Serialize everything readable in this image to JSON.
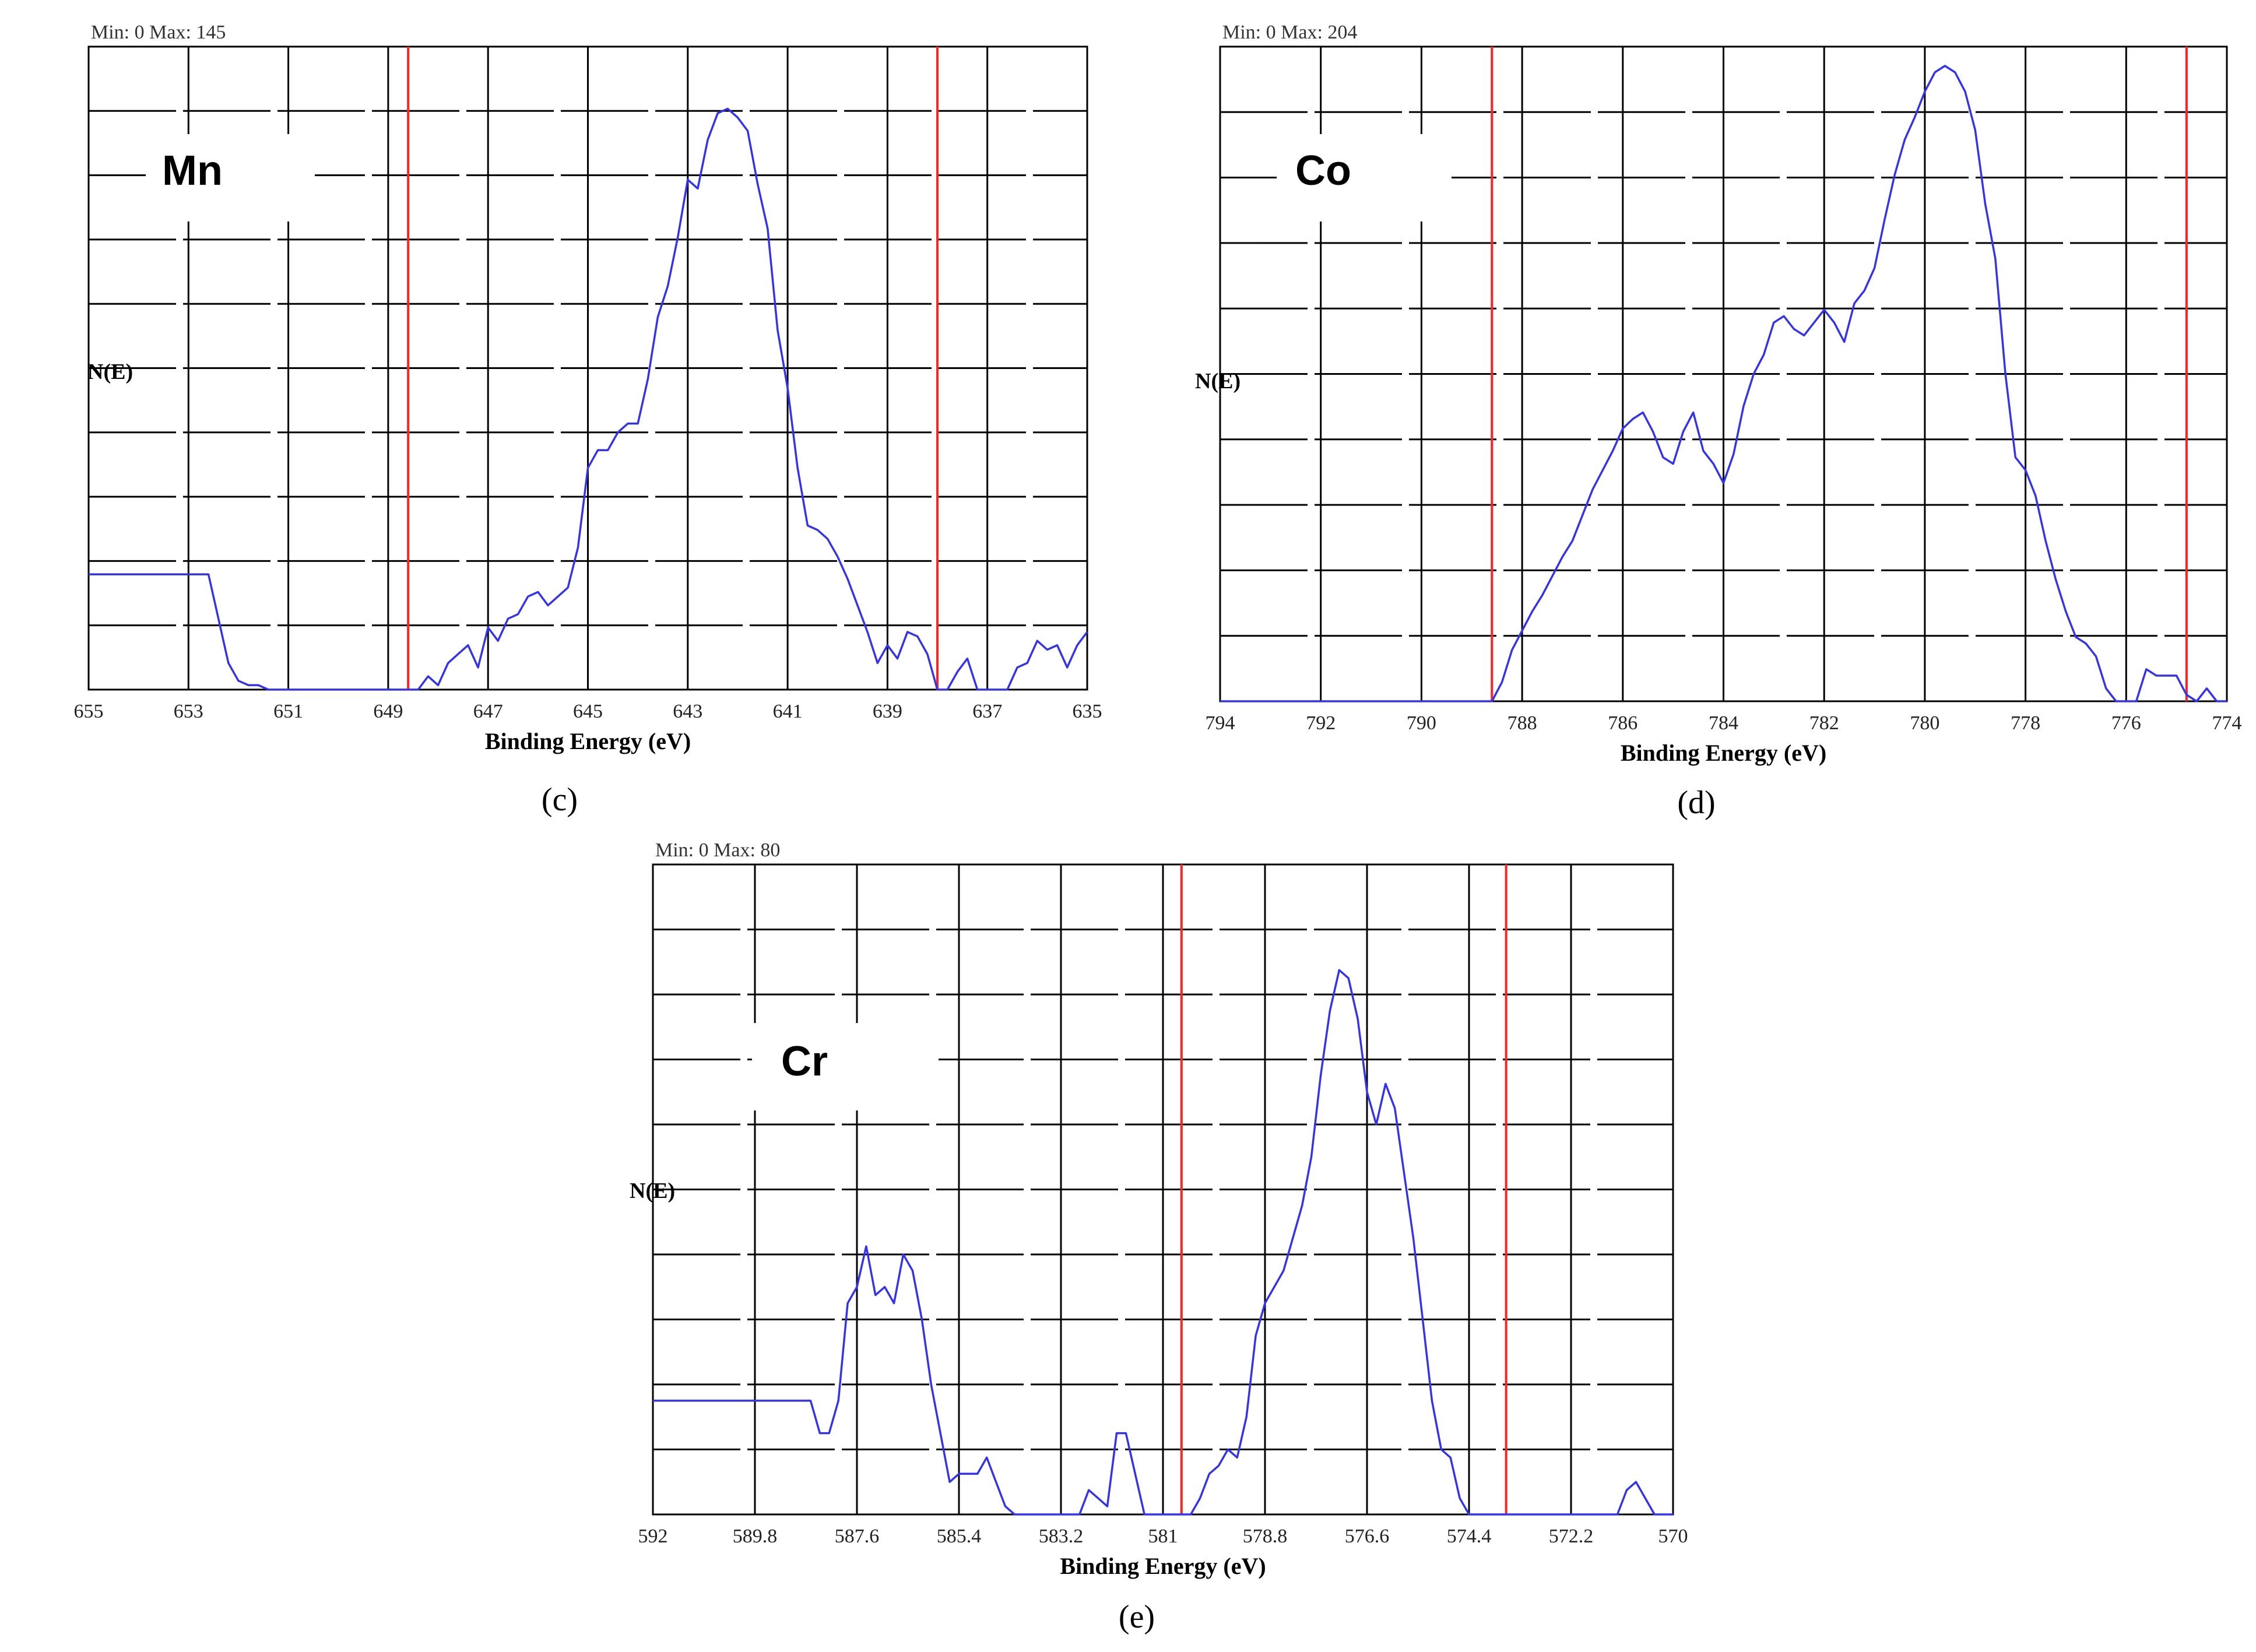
{
  "chart_data": [
    {
      "type": "line",
      "panel_label": "(c)",
      "element_label": "Mn",
      "range_text": "Min: 0   Max: 145",
      "xlabel": "Binding Energy (eV)",
      "ylabel": "N(E)",
      "x_reversed": true,
      "xlim": [
        655,
        635
      ],
      "ylim": [
        0,
        145
      ],
      "x_ticks": [
        "655",
        "653",
        "651",
        "649",
        "647",
        "645",
        "643",
        "641",
        "639",
        "637",
        "635"
      ],
      "x_tick_values": [
        655,
        653,
        651,
        649,
        647,
        645,
        643,
        641,
        639,
        637,
        635
      ],
      "grid": true,
      "y_grid_divisions": 10,
      "dashed_hlines": true,
      "colors": {
        "series": "#3333ee",
        "markers": "#ff2222",
        "grid": "#000000"
      },
      "markers_x": [
        648.6,
        638.0
      ],
      "series": [
        {
          "x": [
            655,
            652.6,
            652.4,
            652.2,
            652.0,
            651.8,
            651.6,
            651.4,
            651.0,
            649.5,
            648.6,
            648.4,
            648.2,
            648.0,
            647.8,
            647.6,
            647.4,
            647.2,
            647.0,
            646.8,
            646.6,
            646.4,
            646.2,
            646.0,
            645.8,
            645.6,
            645.4,
            645.2,
            645.0,
            644.8,
            644.6,
            644.4,
            644.2,
            644.0,
            643.8,
            643.6,
            643.4,
            643.2,
            643.0,
            642.8,
            642.6,
            642.4,
            642.2,
            642.0,
            641.8,
            641.6,
            641.4,
            641.2,
            641.0,
            640.8,
            640.6,
            640.4,
            640.2,
            640.0,
            639.8,
            639.6,
            639.4,
            639.2,
            639.0,
            638.8,
            638.6,
            638.4,
            638.2,
            638.0,
            637.8,
            637.6,
            637.4,
            637.2,
            637.0,
            636.8,
            636.6,
            636.4,
            636.2,
            636.0,
            635.8,
            635.6,
            635.4,
            635.2,
            635.0
          ],
          "y": [
            26,
            26,
            16,
            6,
            2,
            1,
            1,
            0,
            0,
            0,
            0,
            0,
            3,
            1,
            6,
            8,
            10,
            5,
            14,
            11,
            16,
            17,
            21,
            22,
            19,
            21,
            23,
            32,
            50,
            54,
            54,
            58,
            60,
            60,
            70,
            84,
            91,
            102,
            115,
            113,
            124,
            130,
            131,
            129,
            126,
            114,
            104,
            81,
            68,
            50,
            37,
            36,
            34,
            30,
            25,
            19,
            13,
            6,
            10,
            7,
            13,
            12,
            8,
            0,
            0,
            4,
            7,
            0,
            0,
            0,
            0,
            5,
            6,
            11,
            9,
            10,
            5,
            10,
            13
          ]
        }
      ]
    },
    {
      "type": "line",
      "panel_label": "(d)",
      "element_label": "Co",
      "range_text": "Min: 0   Max: 204",
      "xlabel": "Binding Energy (eV)",
      "ylabel": "N(E)",
      "x_reversed": true,
      "xlim": [
        794,
        774
      ],
      "ylim": [
        0,
        204
      ],
      "x_ticks": [
        "794",
        "792",
        "790",
        "788",
        "786",
        "784",
        "782",
        "780",
        "778",
        "776",
        "774"
      ],
      "x_tick_values": [
        794,
        792,
        790,
        788,
        786,
        784,
        782,
        780,
        778,
        776,
        774
      ],
      "grid": true,
      "y_grid_divisions": 10,
      "dashed_hlines": true,
      "colors": {
        "series": "#3333ee",
        "markers": "#ff2222",
        "grid": "#000000"
      },
      "markers_x": [
        788.6,
        774.8
      ],
      "series": [
        {
          "x": [
            794,
            789.0,
            788.6,
            788.4,
            788.2,
            788.0,
            787.8,
            787.6,
            787.4,
            787.2,
            787.0,
            786.8,
            786.6,
            786.4,
            786.2,
            786.0,
            785.8,
            785.6,
            785.4,
            785.2,
            785.0,
            784.8,
            784.6,
            784.4,
            784.2,
            784.0,
            783.8,
            783.6,
            783.4,
            783.2,
            783.0,
            782.8,
            782.6,
            782.4,
            782.2,
            782.0,
            781.8,
            781.6,
            781.4,
            781.2,
            781.0,
            780.8,
            780.6,
            780.4,
            780.2,
            780.0,
            779.8,
            779.6,
            779.4,
            779.2,
            779.0,
            778.8,
            778.6,
            778.4,
            778.2,
            778.0,
            777.8,
            777.6,
            777.4,
            777.2,
            777.0,
            776.8,
            776.6,
            776.4,
            776.2,
            776.0,
            775.8,
            775.6,
            775.4,
            775.2,
            775.0,
            774.8,
            774.6,
            774.4,
            774.2,
            774.0
          ],
          "y": [
            0,
            0,
            0,
            6,
            16,
            22,
            28,
            33,
            39,
            45,
            50,
            58,
            66,
            72,
            78,
            85,
            88,
            90,
            84,
            76,
            74,
            84,
            90,
            78,
            74,
            68,
            77,
            92,
            102,
            108,
            118,
            120,
            116,
            114,
            118,
            122,
            118,
            112,
            124,
            128,
            135,
            150,
            164,
            175,
            182,
            190,
            196,
            198,
            196,
            190,
            178,
            155,
            138,
            102,
            76,
            72,
            64,
            50,
            38,
            28,
            20,
            18,
            14,
            4,
            0,
            0,
            0,
            10,
            8,
            8,
            8,
            2,
            0,
            4,
            0,
            0
          ]
        }
      ]
    },
    {
      "type": "line",
      "panel_label": "(e)",
      "element_label": "Cr",
      "range_text": "Min: 0   Max: 80",
      "xlabel": "Binding Energy (eV)",
      "ylabel": "N(E)",
      "x_reversed": true,
      "xlim": [
        592,
        570
      ],
      "ylim": [
        0,
        80
      ],
      "x_ticks": [
        "592",
        "589.8",
        "587.6",
        "585.4",
        "583.2",
        "581",
        "578.8",
        "576.6",
        "574.4",
        "572.2",
        "570"
      ],
      "x_tick_values": [
        592,
        589.8,
        587.6,
        585.4,
        583.2,
        581,
        578.8,
        576.6,
        574.4,
        572.2,
        570
      ],
      "grid": true,
      "y_grid_divisions": 10,
      "dashed_hlines": true,
      "colors": {
        "series": "#3333ee",
        "markers": "#ff2222",
        "grid": "#000000"
      },
      "markers_x": [
        580.6,
        573.6
      ],
      "series": [
        {
          "x": [
            592,
            588.6,
            588.4,
            588.2,
            588.0,
            587.8,
            587.6,
            587.4,
            587.2,
            587.0,
            586.8,
            586.6,
            586.4,
            586.2,
            586.0,
            585.8,
            585.6,
            585.4,
            585.2,
            585.0,
            584.8,
            584.6,
            584.4,
            584.2,
            584.0,
            583.8,
            583.6,
            583.2,
            582.8,
            582.6,
            582.4,
            582.2,
            582.0,
            581.8,
            581.6,
            581.4,
            581.2,
            581.0,
            580.6,
            580.4,
            580.2,
            580.0,
            579.8,
            579.6,
            579.4,
            579.2,
            579.0,
            578.8,
            578.6,
            578.4,
            578.2,
            578.0,
            577.8,
            577.6,
            577.4,
            577.2,
            577.0,
            576.8,
            576.6,
            576.4,
            576.2,
            576.0,
            575.8,
            575.6,
            575.4,
            575.2,
            575.0,
            574.8,
            574.6,
            574.4,
            574.0,
            573.5,
            572.2,
            571.2,
            571.0,
            570.8,
            570.6,
            570.4,
            570.2,
            570.0
          ],
          "y": [
            14,
            14,
            10,
            10,
            14,
            26,
            28,
            33,
            27,
            28,
            26,
            32,
            30,
            24,
            16,
            10,
            4,
            5,
            5,
            5,
            7,
            4,
            1,
            0,
            0,
            0,
            0,
            0,
            0,
            3,
            2,
            1,
            10,
            10,
            5,
            0,
            0,
            0,
            0,
            0,
            2,
            5,
            6,
            8,
            7,
            12,
            22,
            26,
            28,
            30,
            34,
            38,
            44,
            54,
            62,
            67,
            66,
            61,
            52,
            48,
            53,
            50,
            42,
            34,
            24,
            14,
            8,
            7,
            2,
            0,
            0,
            0,
            0,
            0,
            3,
            4,
            2,
            0,
            0,
            0
          ]
        }
      ]
    }
  ]
}
